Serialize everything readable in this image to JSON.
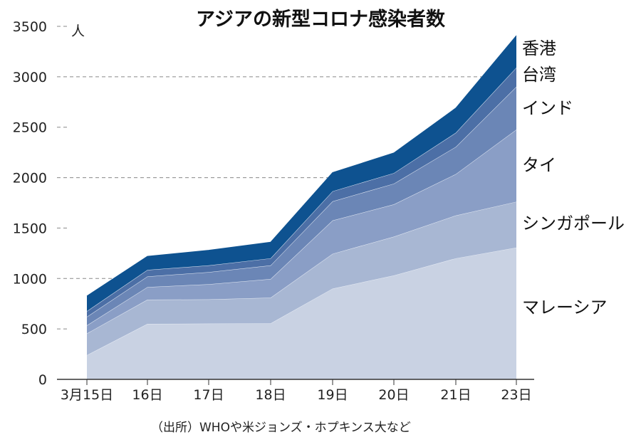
{
  "chart_data": {
    "type": "area",
    "stacked": true,
    "title": "アジアの新型コロナ感染者数",
    "ylabel": "人",
    "xlabel": "",
    "categories": [
      "3月15日",
      "16日",
      "17日",
      "18日",
      "19日",
      "20日",
      "21日",
      "23日"
    ],
    "ylim": [
      0,
      3500
    ],
    "yticks": [
      0,
      500,
      1000,
      1500,
      2000,
      2500,
      3000,
      3500
    ],
    "gridlines": [
      1000,
      2000,
      3000
    ],
    "series": [
      {
        "name": "マレーシア",
        "color": "#c9d2e3",
        "values": [
          240,
          550,
          553,
          555,
          900,
          1030,
          1200,
          1306
        ]
      },
      {
        "name": "シンガポール",
        "color": "#a8b7d3",
        "values": [
          215,
          240,
          240,
          255,
          345,
          385,
          425,
          455
        ]
      },
      {
        "name": "タイ",
        "color": "#8a9ec6",
        "values": [
          80,
          125,
          150,
          185,
          330,
          320,
          410,
          715
        ]
      },
      {
        "name": "インド",
        "color": "#6b86b6",
        "values": [
          85,
          105,
          120,
          135,
          190,
          205,
          270,
          425
        ]
      },
      {
        "name": "台湾",
        "color": "#4c6fa6",
        "values": [
          56,
          65,
          67,
          70,
          100,
          105,
          140,
          190
        ]
      },
      {
        "name": "香港",
        "color": "#0e5290",
        "values": [
          150,
          135,
          150,
          160,
          185,
          200,
          245,
          317
        ]
      }
    ],
    "legend_placement": "right (inline labels)",
    "source": "（出所）WHOや米ジョンズ・ホプキンス大など"
  }
}
